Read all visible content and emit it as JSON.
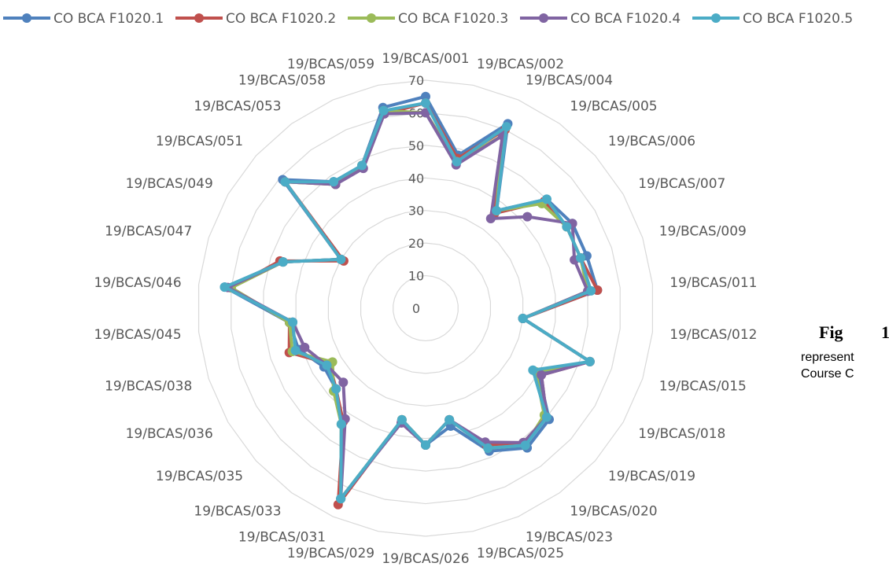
{
  "figure_caption": {
    "prefix": "Fig",
    "number": "1",
    "line1": "represent",
    "line2": "Course C"
  },
  "chart_data": {
    "type": "radar",
    "r_range": [
      0,
      70
    ],
    "r_ticks": [
      0,
      10,
      20,
      30,
      40,
      50,
      60,
      70
    ],
    "grid": true,
    "legend_position": "top",
    "categories": [
      "19/BCAS/001",
      "19/BCAS/002",
      "19/BCAS/004",
      "19/BCAS/005",
      "19/BCAS/006",
      "19/BCAS/007",
      "19/BCAS/009",
      "19/BCAS/011",
      "19/BCAS/012",
      "19/BCAS/015",
      "19/BCAS/018",
      "19/BCAS/019",
      "19/BCAS/020",
      "19/BCAS/023",
      "19/BCAS/025",
      "19/BCAS/026",
      "19/BCAS/029",
      "19/BCAS/031",
      "19/BCAS/033",
      "19/BCAS/035",
      "19/BCAS/036",
      "19/BCAS/038",
      "19/BCAS/045",
      "19/BCAS/046",
      "19/BCAS/047",
      "19/BCAS/049",
      "19/BCAS/051",
      "19/BCAS/053",
      "19/BCAS/058",
      "19/BCAS/059"
    ],
    "series": [
      {
        "name": "CO BCA F1020.1",
        "color": "#4F81BD",
        "values": [
          65,
          48,
          62,
          37,
          50,
          52,
          52,
          53,
          30,
          53,
          40,
          51,
          53,
          48,
          37,
          42,
          35,
          64,
          44,
          37,
          36,
          41,
          42,
          62,
          46,
          30,
          59,
          48,
          48,
          63
        ]
      },
      {
        "name": "CO BCA F1020.2",
        "color": "#C0504D",
        "values": [
          63,
          47,
          60,
          36,
          49,
          50,
          50,
          53,
          30,
          53,
          41,
          50,
          51,
          46,
          35,
          42,
          35,
          66,
          43,
          37,
          34,
          44,
          42,
          60,
          47,
          29,
          58,
          47,
          48,
          61
        ]
      },
      {
        "name": "CO BCA F1020.3",
        "color": "#9BBB59",
        "values": [
          60,
          46,
          58,
          37,
          48,
          50,
          50,
          50,
          30,
          53,
          39,
          49,
          52,
          47,
          35,
          42,
          35,
          64,
          44,
          38,
          33,
          43,
          42,
          60,
          46,
          30,
          58,
          47,
          48,
          62
        ]
      },
      {
        "name": "CO BCA F1020.4",
        "color": "#8064A2",
        "values": [
          60,
          45,
          58,
          34,
          42,
          52,
          48,
          50,
          30,
          53,
          41,
          50,
          51,
          45,
          35,
          42,
          36,
          64,
          42,
          34,
          35,
          39,
          41,
          61,
          46,
          30,
          58,
          47,
          47,
          61
        ]
      },
      {
        "name": "CO BCA F1020.5",
        "color": "#4BACC6",
        "values": [
          63,
          46,
          61,
          37,
          50,
          50,
          50,
          51,
          30,
          53,
          38,
          50,
          52,
          47,
          35,
          42,
          35,
          64,
          44,
          37,
          35,
          42,
          41,
          62,
          46,
          30,
          58,
          48,
          48,
          62
        ]
      }
    ]
  }
}
